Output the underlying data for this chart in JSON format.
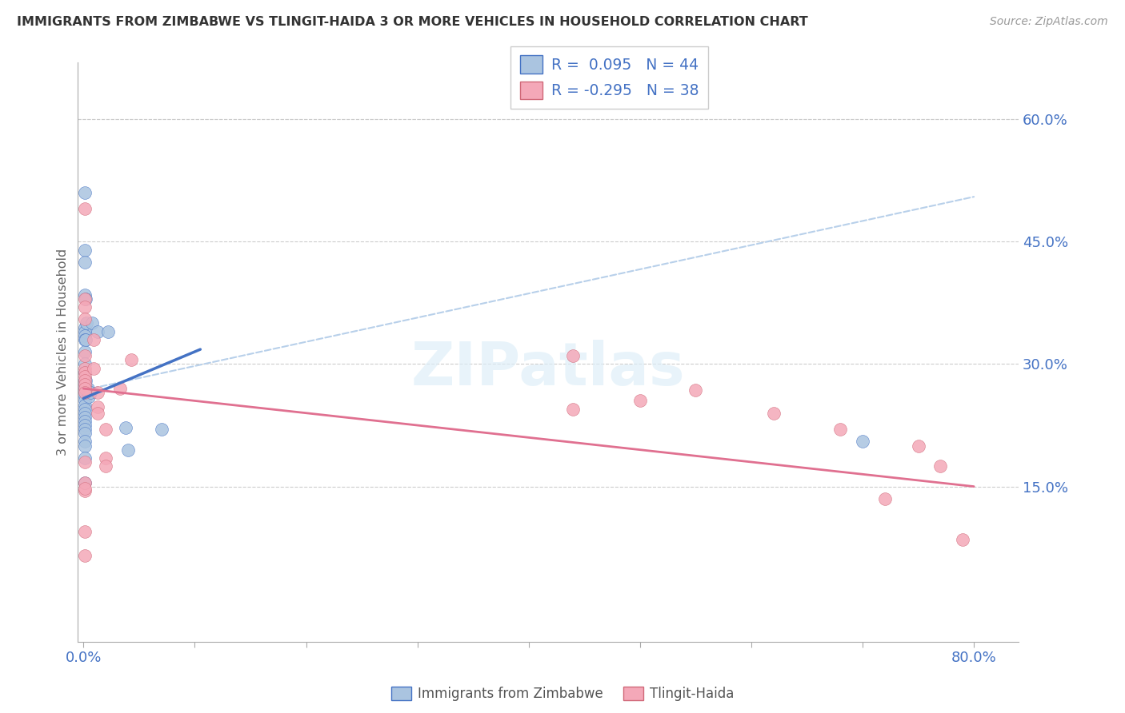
{
  "title": "IMMIGRANTS FROM ZIMBABWE VS TLINGIT-HAIDA 3 OR MORE VEHICLES IN HOUSEHOLD CORRELATION CHART",
  "source": "Source: ZipAtlas.com",
  "ylabel": "3 or more Vehicles in Household",
  "legend_label1": "Immigrants from Zimbabwe",
  "legend_label2": "Tlingit-Haida",
  "r1": 0.095,
  "n1": 44,
  "r2": -0.295,
  "n2": 38,
  "color1": "#aac4e0",
  "color2": "#f4a8b8",
  "line1_color": "#4472c4",
  "line2_color": "#e07090",
  "watermark": "ZIPatlas",
  "blue_scatter_x": [
    0.001,
    0.001,
    0.001,
    0.001,
    0.001,
    0.001,
    0.001,
    0.001,
    0.001,
    0.001,
    0.001,
    0.001,
    0.001,
    0.001,
    0.001,
    0.001,
    0.001,
    0.001,
    0.001,
    0.001,
    0.001,
    0.001,
    0.001,
    0.001,
    0.001,
    0.001,
    0.001,
    0.001,
    0.001,
    0.002,
    0.002,
    0.002,
    0.003,
    0.003,
    0.004,
    0.005,
    0.006,
    0.008,
    0.013,
    0.022,
    0.038,
    0.04,
    0.07,
    0.7
  ],
  "blue_scatter_y": [
    0.51,
    0.44,
    0.425,
    0.385,
    0.345,
    0.34,
    0.335,
    0.33,
    0.315,
    0.3,
    0.29,
    0.28,
    0.275,
    0.27,
    0.265,
    0.26,
    0.255,
    0.25,
    0.245,
    0.24,
    0.235,
    0.23,
    0.225,
    0.22,
    0.215,
    0.205,
    0.2,
    0.185,
    0.155,
    0.38,
    0.33,
    0.28,
    0.35,
    0.27,
    0.27,
    0.26,
    0.265,
    0.35,
    0.34,
    0.34,
    0.222,
    0.195,
    0.22,
    0.205
  ],
  "pink_scatter_x": [
    0.001,
    0.001,
    0.001,
    0.001,
    0.001,
    0.001,
    0.001,
    0.001,
    0.001,
    0.001,
    0.001,
    0.001,
    0.001,
    0.001,
    0.001,
    0.001,
    0.001,
    0.001,
    0.009,
    0.009,
    0.013,
    0.013,
    0.013,
    0.02,
    0.02,
    0.02,
    0.033,
    0.043,
    0.44,
    0.44,
    0.5,
    0.55,
    0.62,
    0.68,
    0.75,
    0.72,
    0.77,
    0.79
  ],
  "pink_scatter_y": [
    0.49,
    0.38,
    0.37,
    0.355,
    0.31,
    0.295,
    0.29,
    0.285,
    0.28,
    0.275,
    0.27,
    0.265,
    0.18,
    0.145,
    0.095,
    0.065,
    0.155,
    0.148,
    0.33,
    0.295,
    0.265,
    0.248,
    0.24,
    0.22,
    0.185,
    0.175,
    0.27,
    0.305,
    0.31,
    0.245,
    0.255,
    0.268,
    0.24,
    0.22,
    0.2,
    0.135,
    0.175,
    0.085
  ],
  "xlim": [
    -0.005,
    0.84
  ],
  "ylim": [
    -0.04,
    0.67
  ],
  "yticks": [
    0.15,
    0.3,
    0.45,
    0.6
  ],
  "blue_line_x": [
    0.0,
    0.105
  ],
  "blue_line_y": [
    0.258,
    0.318
  ],
  "pink_line_x": [
    0.0,
    0.8
  ],
  "pink_line_y": [
    0.27,
    0.15
  ],
  "dash_line_x": [
    0.0,
    0.8
  ],
  "dash_line_y": [
    0.268,
    0.505
  ]
}
